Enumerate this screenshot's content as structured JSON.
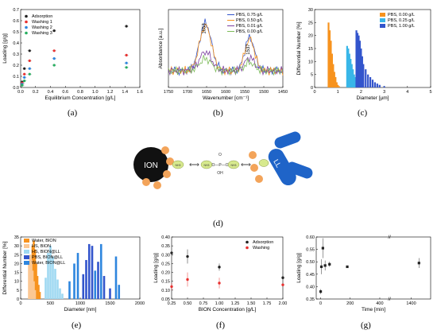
{
  "panel_labels": [
    "(a)",
    "(b)",
    "(c)",
    "(d)",
    "(e)",
    "(f)",
    "(g)"
  ],
  "colors": {
    "adsorption": "#222222",
    "washing1": "#e8302f",
    "washing2": "#2e86de",
    "washing3": "#27ae60",
    "orange": "#f7931e",
    "cyan": "#39b6e8",
    "blue": "#3355cc",
    "lightorange": "#fbc894",
    "lightcyan": "#9fd9f2",
    "green": "#7dbb5a"
  },
  "diagram": {
    "ion_label": "ION",
    "ll_label": "LL",
    "node_label": "NH3",
    "center_top": "O",
    "center_mid": "O—P—O",
    "center_bot": "OH"
  },
  "chart_data": [
    {
      "id": "a",
      "type": "scatter",
      "xlabel": "Equilibrium Concentration [g/L]",
      "ylabel": "Loading [g/g]",
      "xlim": [
        0,
        1.6
      ],
      "ylim": [
        0,
        0.7
      ],
      "xticks": [
        "0.0",
        "0.2",
        "0.4",
        "0.6",
        "0.8",
        "1.0",
        "1.2",
        "1.4",
        "1.6"
      ],
      "yticks": [
        "0.0",
        "0.1",
        "0.2",
        "0.3",
        "0.4",
        "0.5",
        "0.6",
        "0.7"
      ],
      "series": [
        {
          "name": "Adsorption",
          "color": "#222222",
          "points": [
            [
              0.02,
              0.05
            ],
            [
              0.05,
              0.17
            ],
            [
              0.12,
              0.33
            ],
            [
              0.45,
              0.51
            ],
            [
              1.42,
              0.55
            ]
          ]
        },
        {
          "name": "Washing 1",
          "color": "#e8302f",
          "points": [
            [
              0.02,
              0.04
            ],
            [
              0.05,
              0.12
            ],
            [
              0.12,
              0.24
            ],
            [
              0.45,
              0.33
            ],
            [
              1.42,
              0.29
            ]
          ]
        },
        {
          "name": "Washing 2",
          "color": "#2e86de",
          "points": [
            [
              0.02,
              0.03
            ],
            [
              0.05,
              0.09
            ],
            [
              0.12,
              0.17
            ],
            [
              0.45,
              0.26
            ],
            [
              1.42,
              0.22
            ]
          ]
        },
        {
          "name": "Washing 3",
          "color": "#27ae60",
          "points": [
            [
              0.02,
              0.02
            ],
            [
              0.05,
              0.06
            ],
            [
              0.12,
              0.12
            ],
            [
              0.45,
              0.2
            ],
            [
              1.42,
              0.18
            ]
          ]
        }
      ]
    },
    {
      "id": "b",
      "type": "line",
      "xlabel": "Wavenumber [cm⁻¹]",
      "ylabel": "Absorbance [a.u.]",
      "xlim": [
        1750,
        1450
      ],
      "xticks": [
        "1750",
        "1700",
        "1650",
        "1600",
        "1550",
        "1500",
        "1450"
      ],
      "annotations": [
        "1653",
        "1537"
      ],
      "series": [
        {
          "name": "PBS, 0.75 g/L",
          "color": "#3355cc"
        },
        {
          "name": "PBS, 0.50 g/L",
          "color": "#f7931e"
        },
        {
          "name": "PBS, 0.01 g/L",
          "color": "#7b3fa0"
        },
        {
          "name": "PBS, 0.00 g/L",
          "color": "#7dbb5a"
        }
      ]
    },
    {
      "id": "c",
      "type": "bar",
      "xlabel": "Diameter [µm]",
      "ylabel": "Differential Number [%]",
      "xlim": [
        0,
        5
      ],
      "ylim": [
        0,
        30
      ],
      "xticks": [
        "0",
        "1",
        "2",
        "3",
        "4",
        "5"
      ],
      "yticks": [
        "0",
        "5",
        "10",
        "15",
        "20",
        "25",
        "30"
      ],
      "series": [
        {
          "name": "PBS, 0.00 g/L",
          "color": "#f7931e",
          "x": [
            0.6,
            0.65,
            0.7,
            0.75,
            0.8,
            0.85,
            0.9,
            0.95,
            1.0,
            1.05
          ],
          "values": [
            25,
            22,
            18,
            13,
            9,
            6,
            4,
            2,
            1,
            0.5
          ]
        },
        {
          "name": "PBS, 0.25 g/L",
          "color": "#39b6e8",
          "x": [
            1.4,
            1.45,
            1.5,
            1.55,
            1.6,
            1.65,
            1.7,
            1.75,
            1.8,
            1.9,
            2.0
          ],
          "values": [
            16,
            15,
            13,
            11,
            9,
            7,
            5,
            4,
            3,
            2,
            1
          ]
        },
        {
          "name": "PBS, 1.00 g/L",
          "color": "#3355cc",
          "x": [
            1.8,
            1.85,
            1.9,
            1.95,
            2.0,
            2.05,
            2.1,
            2.2,
            2.3,
            2.4,
            2.5,
            2.6,
            2.7,
            2.8,
            3.0
          ],
          "values": [
            22,
            21,
            20,
            18,
            15,
            12,
            9,
            7,
            5,
            4,
            3,
            2,
            1.5,
            1,
            0.5
          ]
        }
      ]
    },
    {
      "id": "e",
      "type": "bar",
      "xlabel": "Diameter [nm]",
      "ylabel": "Differential Number [%]",
      "xlim": [
        0,
        2000
      ],
      "ylim": [
        0,
        35
      ],
      "xticks": [
        "0",
        "500",
        "1000",
        "1500",
        "2000"
      ],
      "yticks": [
        "0",
        "5",
        "10",
        "15",
        "20",
        "25",
        "30",
        "35"
      ],
      "series": [
        {
          "name": "Water, BION",
          "color": "#f7931e",
          "x": [
            180,
            200,
            220,
            240,
            260,
            280,
            300,
            320
          ],
          "values": [
            22,
            30,
            33,
            28,
            20,
            13,
            8,
            4
          ]
        },
        {
          "name": "HS, BION",
          "color": "#fbc894",
          "x": [
            140,
            160,
            180,
            200,
            220,
            240
          ],
          "values": [
            20,
            25,
            22,
            16,
            10,
            5
          ]
        },
        {
          "name": "HS, BION@LL",
          "color": "#9fd9f2",
          "x": [
            420,
            460,
            500,
            540,
            580,
            620,
            660,
            700
          ],
          "values": [
            12,
            26,
            30,
            24,
            17,
            11,
            6,
            3
          ]
        },
        {
          "name": "PBS, BION@LL",
          "color": "#3355cc",
          "x": [
            1050,
            1100,
            1150,
            1200,
            1300,
            1400,
            1500
          ],
          "values": [
            14,
            22,
            31,
            30,
            21,
            13,
            6
          ]
        },
        {
          "name": "Water, BION@LL",
          "color": "#2e86de",
          "x": [
            820,
            900,
            960,
            1250,
            1350,
            1600,
            1650
          ],
          "values": [
            10,
            20,
            26,
            16,
            31,
            24,
            8
          ]
        }
      ]
    },
    {
      "id": "f",
      "type": "scatter",
      "xlabel": "BION Concentration [g/L]",
      "ylabel": "Loading [g/g]",
      "xlim": [
        0.25,
        2.0
      ],
      "ylim": [
        0.05,
        0.4
      ],
      "xticks": [
        "0.25",
        "0.50",
        "0.75",
        "1.00",
        "1.25",
        "1.50",
        "1.75",
        "2.00"
      ],
      "yticks": [
        "0.05",
        "0.10",
        "0.15",
        "0.20",
        "0.25",
        "0.30",
        "0.35",
        "0.40"
      ],
      "series": [
        {
          "name": "Adsorption",
          "color": "#222222",
          "points": [
            [
              0.25,
              0.31
            ],
            [
              0.5,
              0.29
            ],
            [
              1.0,
              0.23
            ],
            [
              2.0,
              0.17
            ]
          ],
          "errors": [
            0.005,
            0.04,
            0.02,
            0.005
          ]
        },
        {
          "name": "Washing",
          "color": "#e8302f",
          "points": [
            [
              0.25,
              0.12
            ],
            [
              0.5,
              0.16
            ],
            [
              1.0,
              0.14
            ],
            [
              2.0,
              0.13
            ]
          ],
          "errors": [
            0.02,
            0.04,
            0.03,
            0.005
          ]
        }
      ]
    },
    {
      "id": "g",
      "type": "scatter",
      "xlabel": "Time [min]",
      "ylabel": "Loading [g/g]",
      "xlim": [
        -30,
        1500
      ],
      "ylim": [
        0.35,
        0.6
      ],
      "xticks": [
        "0",
        "200",
        "400",
        "1400"
      ],
      "yticks": [
        "0.35",
        "0.40",
        "0.45",
        "0.50",
        "0.55",
        "0.60"
      ],
      "series": [
        {
          "name": "",
          "color": "#222222",
          "points": [
            [
              0,
              0.38
            ],
            [
              5,
              0.48
            ],
            [
              15,
              0.555
            ],
            [
              30,
              0.485
            ],
            [
              60,
              0.49
            ],
            [
              180,
              0.48
            ],
            [
              1440,
              0.495
            ]
          ],
          "errors": [
            0.01,
            0.03,
            0.04,
            0.02,
            0.01,
            0.005,
            0.02
          ]
        }
      ]
    }
  ]
}
